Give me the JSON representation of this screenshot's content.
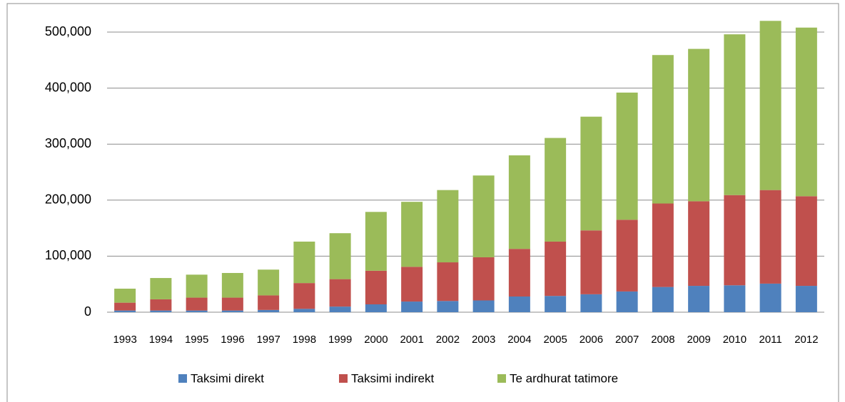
{
  "chart_data": {
    "type": "stacked_bar",
    "categories": [
      "1993",
      "1994",
      "1995",
      "1996",
      "1997",
      "1998",
      "1999",
      "2000",
      "2001",
      "2002",
      "2003",
      "2004",
      "2005",
      "2006",
      "2007",
      "2008",
      "2009",
      "2010",
      "2011",
      "2012"
    ],
    "series": [
      {
        "name": "Taksimi direkt",
        "color": "#4f81bd",
        "values": [
          3000,
          3000,
          3000,
          3000,
          4000,
          6000,
          10000,
          14000,
          19000,
          20000,
          21000,
          28000,
          29000,
          32000,
          37000,
          45000,
          47000,
          48000,
          51000,
          47000
        ]
      },
      {
        "name": "Taksimi indirekt",
        "color": "#c0504d",
        "values": [
          14000,
          20000,
          23000,
          23000,
          26000,
          46000,
          49000,
          60000,
          62000,
          69000,
          77000,
          85000,
          97000,
          114000,
          128000,
          149000,
          151000,
          161000,
          167000,
          160000
        ]
      },
      {
        "name": "Te ardhurat tatimore",
        "color": "#9bbb59",
        "values": [
          25000,
          38000,
          41000,
          44000,
          46000,
          74000,
          82000,
          105000,
          116000,
          129000,
          146000,
          167000,
          185000,
          203000,
          227000,
          265000,
          272000,
          287000,
          302000,
          301000
        ]
      }
    ],
    "ylim": [
      0,
      500000
    ],
    "yticks": [
      0,
      {
        "value": 100000,
        "label": "100,000"
      },
      {
        "value": 200000,
        "label": "200,000"
      },
      {
        "value": 300000,
        "label": "300,000"
      },
      {
        "value": 400000,
        "label": "400,000"
      },
      {
        "value": 500000,
        "label": "500,000"
      }
    ],
    "grid": true,
    "legend": "bottom"
  }
}
